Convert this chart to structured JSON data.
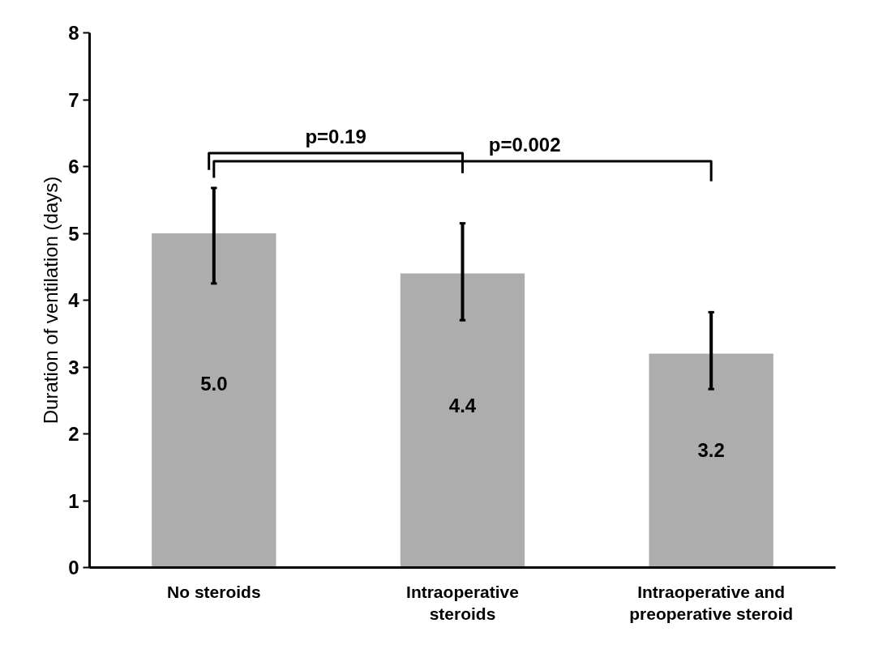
{
  "chart_data": {
    "type": "bar",
    "ylabel": "Duration of ventilation (days)",
    "categories": [
      "No steroids",
      "Intraoperative steroids",
      "Intraoperative and preoperative steroid"
    ],
    "values": [
      5.0,
      4.4,
      3.2
    ],
    "errors": [
      [
        4.25,
        5.68
      ],
      [
        3.7,
        5.15
      ],
      [
        2.67,
        3.82
      ]
    ],
    "color": "#adadad",
    "ylim": [
      0,
      8
    ],
    "yticks": [
      0,
      1,
      2,
      3,
      4,
      5,
      6,
      7,
      8
    ],
    "grid": false,
    "value_labels": [
      "5.0",
      "4.4",
      "3.2"
    ],
    "annotations": [
      "p=0.19",
      "p=0.002"
    ]
  }
}
